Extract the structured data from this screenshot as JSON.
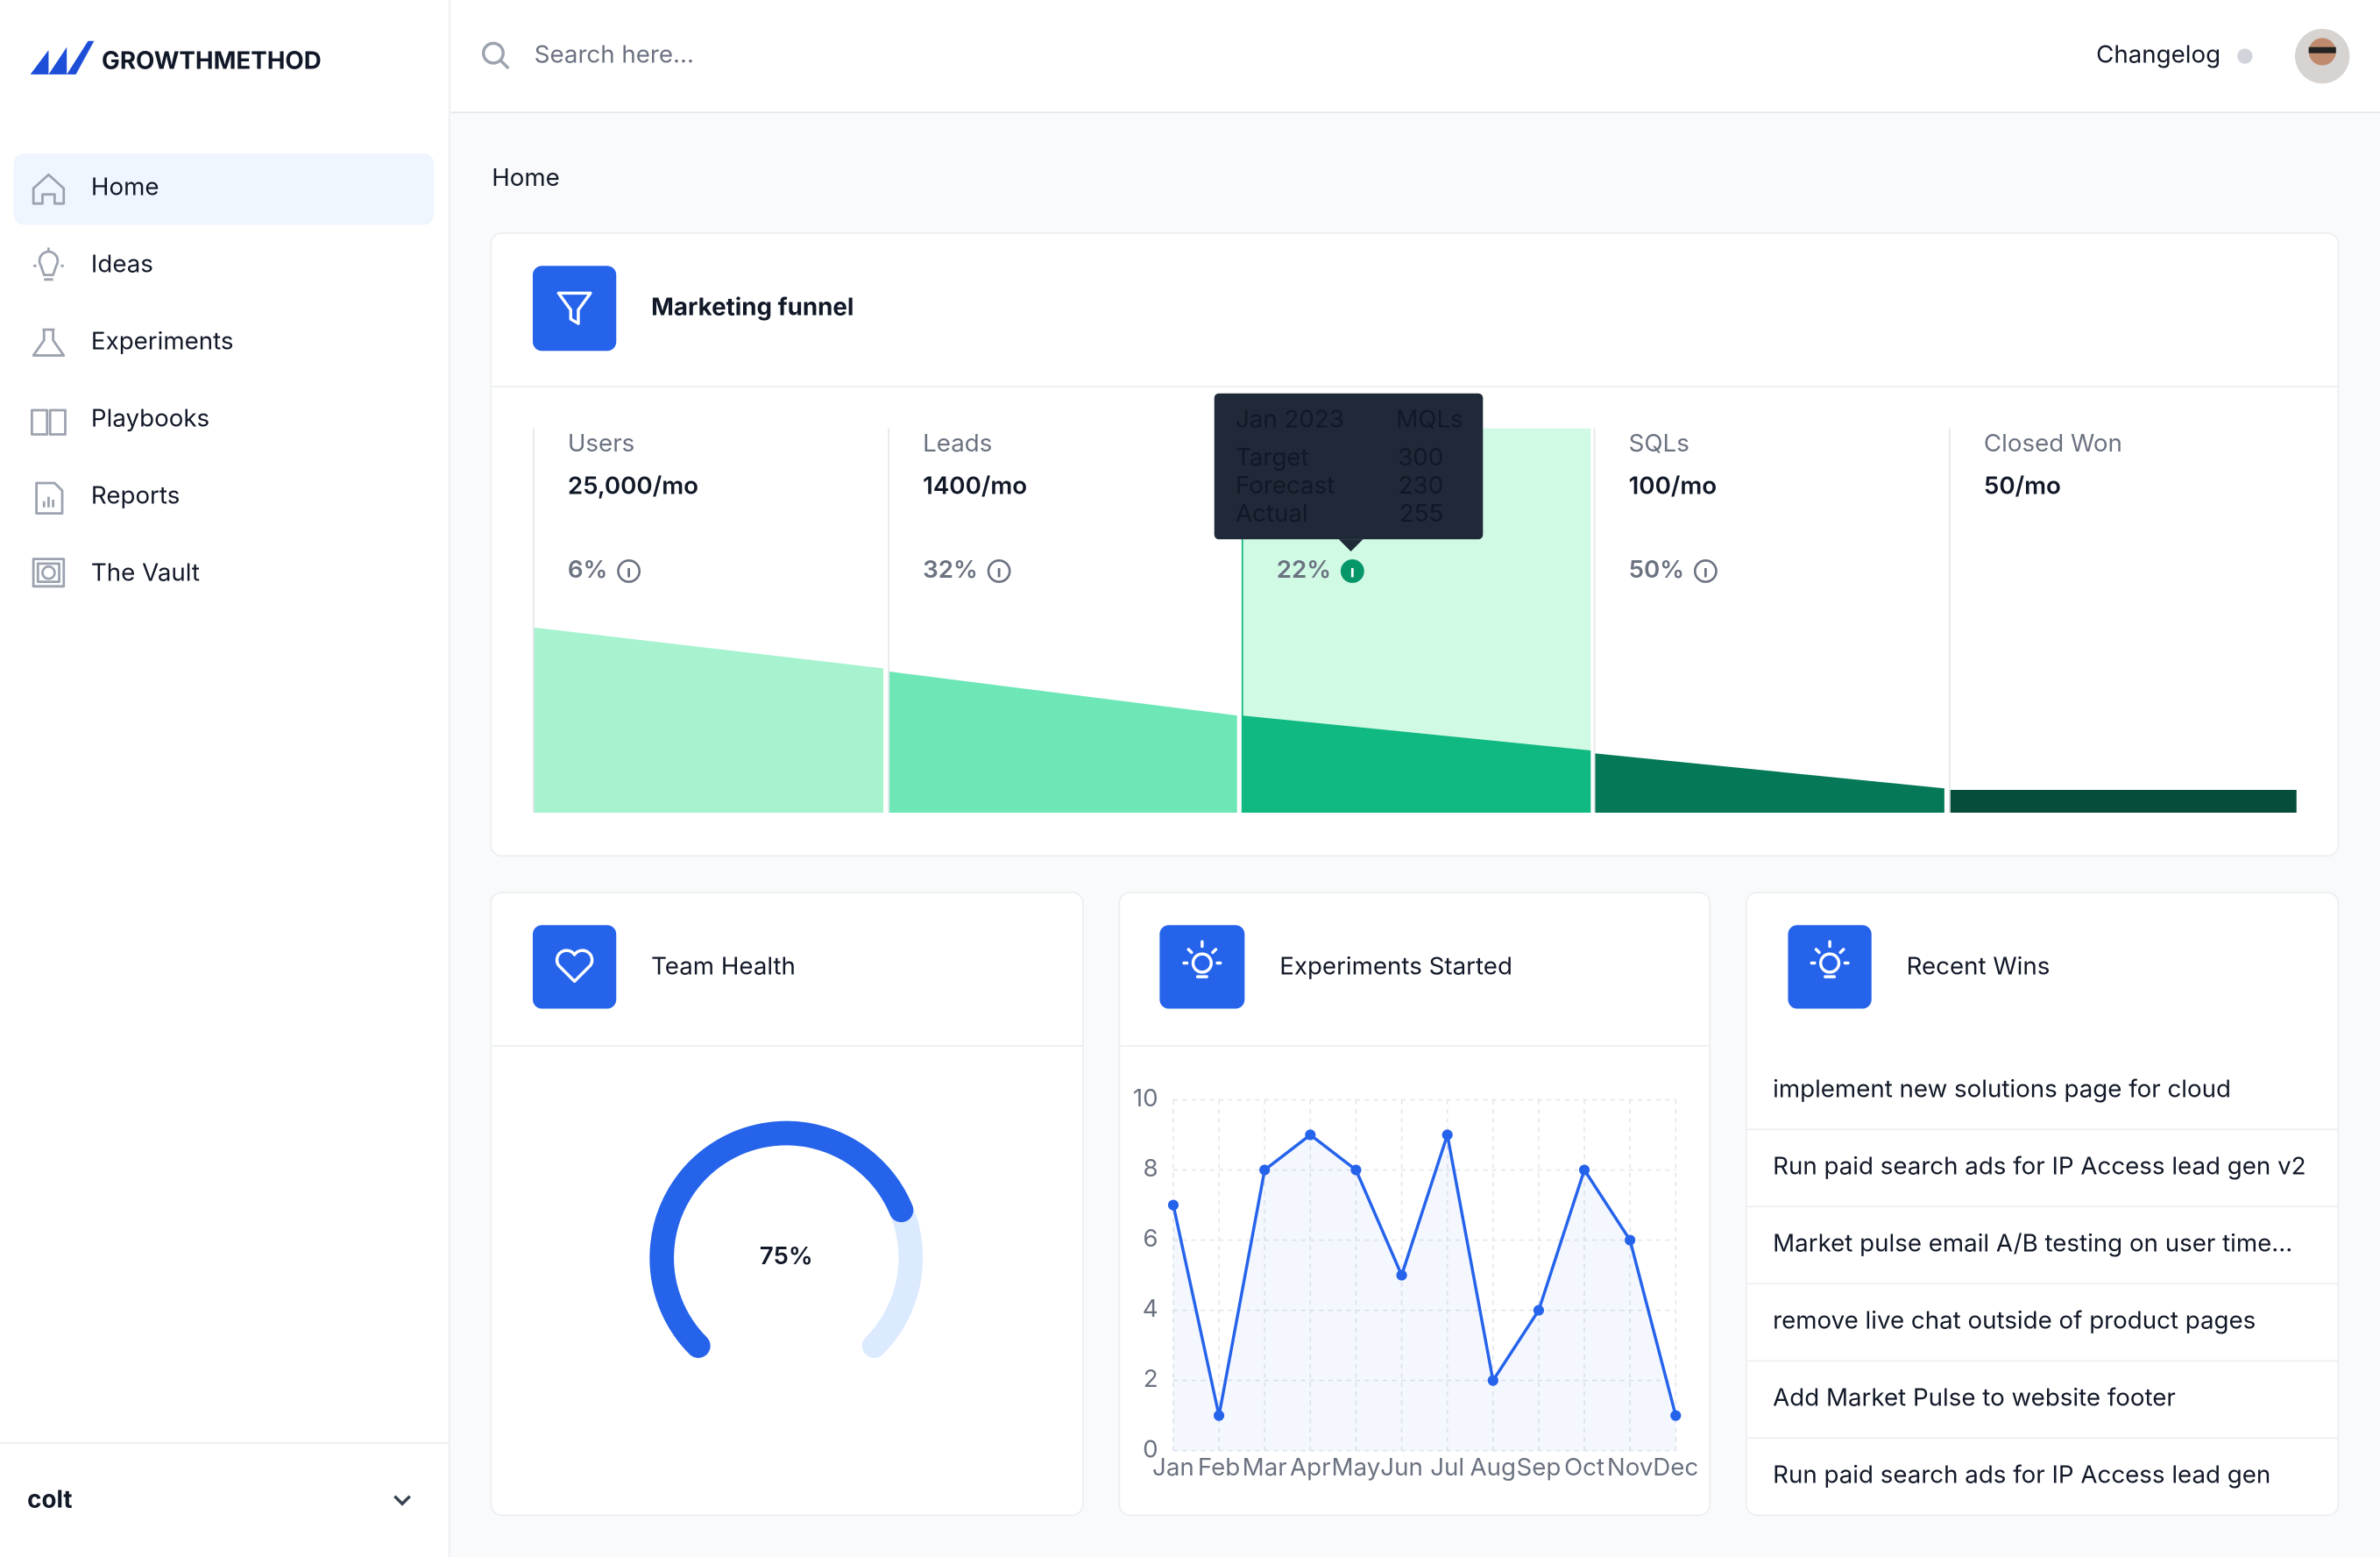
{
  "sidebar": {
    "logo": "GROWTHMETHOD",
    "nav": [
      "Home",
      "Ideas",
      "Experiments",
      "Playbooks",
      "Reports",
      "The Vault"
    ],
    "workspace": "colt"
  },
  "header": {
    "search_placeholder": "Search here...",
    "changelog": "Changelog"
  },
  "page_title": "Home",
  "funnel": {
    "title": "Marketing funnel",
    "stages": [
      {
        "label": "Users",
        "value": "25,000/mo",
        "rate": "6%"
      },
      {
        "label": "Leads",
        "value": "1400/mo",
        "rate": "32%"
      },
      {
        "rate": "22%"
      },
      {
        "label": "SQLs",
        "value": "100/mo",
        "rate": "50%"
      },
      {
        "label": "Closed Won",
        "value": "50/mo"
      }
    ],
    "tooltip": {
      "period": "Jan 2023",
      "metric": "MQLs",
      "rows": [
        {
          "label": "Target",
          "value": 300
        },
        {
          "label": "Forecast",
          "value": 230
        },
        {
          "label": "Actual",
          "value": 255
        }
      ]
    }
  },
  "chart_data": [
    {
      "type": "gauge",
      "title": "Team Health",
      "value": 75,
      "value_label": "75%",
      "color": "#2563eb",
      "track_color": "#dbeafe"
    },
    {
      "type": "line",
      "title": "Experiments Started",
      "categories": [
        "Jan",
        "Feb",
        "Mar",
        "Apr",
        "May",
        "Jun",
        "Jul",
        "Aug",
        "Sep",
        "Oct",
        "Nov",
        "Dec"
      ],
      "values": [
        7,
        1,
        8,
        9,
        8,
        5,
        9,
        2,
        4,
        8,
        6,
        1
      ],
      "ylim": [
        0,
        10
      ],
      "yticks": [
        0,
        2,
        4,
        6,
        8,
        10
      ],
      "grid": true,
      "color": "#2563eb"
    }
  ],
  "recent_wins": {
    "title": "Recent Wins",
    "items": [
      "implement new solutions page for cloud",
      "Run paid search ads for IP Access lead gen v2",
      "Market pulse email A/B testing on user time...",
      "remove live chat outside of product pages",
      "Add Market Pulse to website footer",
      "Run paid search ads for IP Access lead gen"
    ]
  }
}
